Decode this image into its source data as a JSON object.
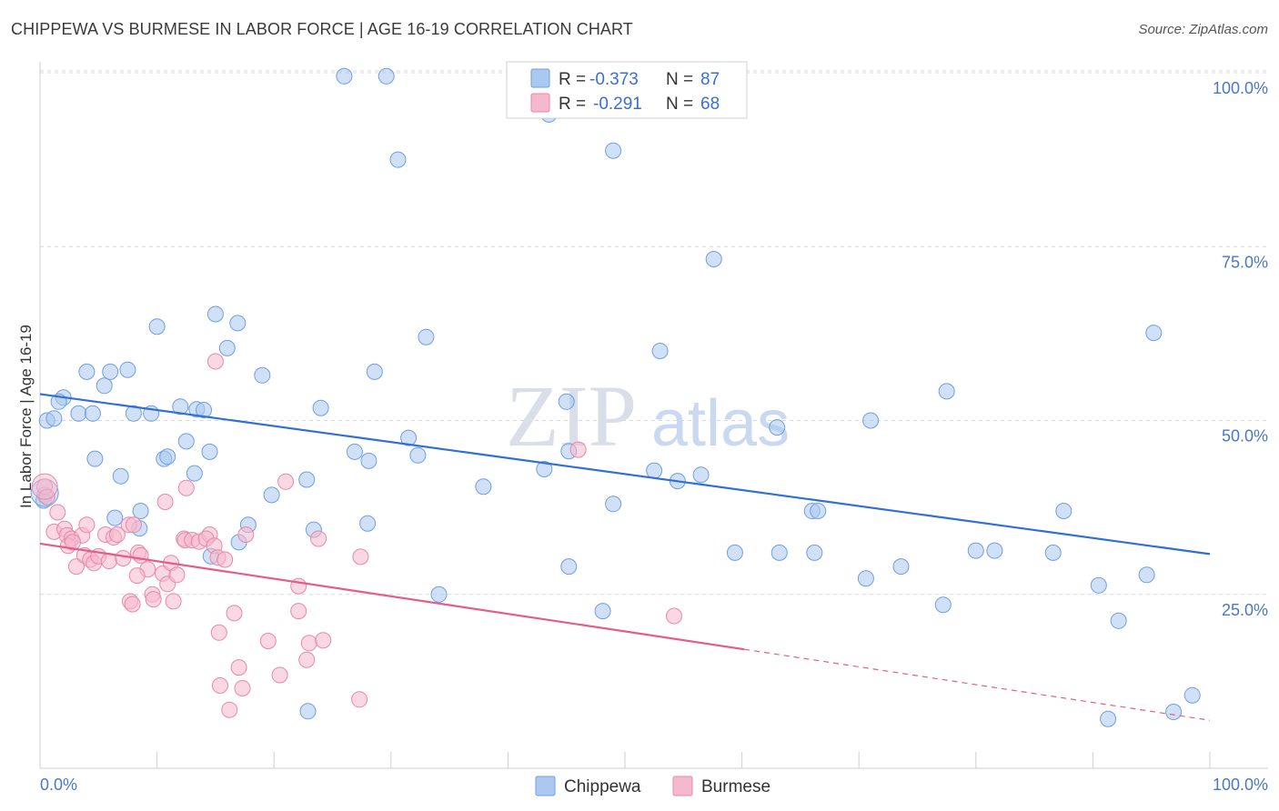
{
  "header": {
    "title": "CHIPPEWA VS BURMESE IN LABOR FORCE | AGE 16-19 CORRELATION CHART",
    "source": "Source: ZipAtlas.com"
  },
  "watermark": {
    "zip": "ZIP",
    "atlas": "atlas"
  },
  "legend": {
    "rows": [
      {
        "r_label": "R =",
        "r_value": "-0.373",
        "n_label": "N =",
        "n_value": "87",
        "color": "#aac8f0"
      },
      {
        "r_label": "R =",
        "r_value": "-0.291",
        "n_label": "N =",
        "n_value": "68",
        "color": "#f5b8cc"
      }
    ]
  },
  "bottom_legend": {
    "items": [
      {
        "label": "Chippewa",
        "color": "#aac8f0"
      },
      {
        "label": "Burmese",
        "color": "#f5b8cc"
      }
    ]
  },
  "chart_data": {
    "type": "scatter",
    "title": "CHIPPEWA VS BURMESE IN LABOR FORCE | AGE 16-19 CORRELATION CHART",
    "xlabel": "",
    "ylabel": "In Labor Force | Age 16-19",
    "xlim": [
      0,
      100
    ],
    "ylim": [
      0,
      103
    ],
    "x_tick_labels": [
      "0.0%",
      "100.0%"
    ],
    "y_ticks": [
      25,
      50,
      75,
      100
    ],
    "y_tick_labels": [
      "25.0%",
      "50.0%",
      "75.0%",
      "100.0%"
    ],
    "grid": true,
    "legend_position": "top-center",
    "series": [
      {
        "name": "Chippewa",
        "color": "#aac8f0",
        "stroke": "#6f9fe0",
        "trend": {
          "x": [
            0,
            100
          ],
          "y": [
            53.8,
            30.8
          ],
          "color": "#2f6fd6"
        },
        "points": [
          [
            26,
            99.5
          ],
          [
            29.6,
            99.5
          ],
          [
            43.5,
            94
          ],
          [
            30.6,
            87.5
          ],
          [
            49,
            88.8
          ],
          [
            57.6,
            73.2
          ],
          [
            95.2,
            62.6
          ],
          [
            10,
            63.5
          ],
          [
            15,
            65.3
          ],
          [
            16.9,
            64
          ],
          [
            16,
            60.4
          ],
          [
            33,
            62
          ],
          [
            53,
            60
          ],
          [
            4,
            57
          ],
          [
            6,
            57
          ],
          [
            7.5,
            57.3
          ],
          [
            19,
            56.5
          ],
          [
            28.6,
            57
          ],
          [
            5.5,
            55
          ],
          [
            2,
            53.3
          ],
          [
            1.6,
            52.7
          ],
          [
            12,
            52
          ],
          [
            13.4,
            51.6
          ],
          [
            14,
            51.5
          ],
          [
            8,
            51
          ],
          [
            9.5,
            51
          ],
          [
            3.3,
            51
          ],
          [
            4.5,
            51
          ],
          [
            0.6,
            50
          ],
          [
            1.2,
            50.3
          ],
          [
            24,
            51.8
          ],
          [
            45,
            52.7
          ],
          [
            77.5,
            54.2
          ],
          [
            71,
            50
          ],
          [
            63,
            49
          ],
          [
            31.5,
            47.5
          ],
          [
            12.5,
            47
          ],
          [
            14.5,
            45.5
          ],
          [
            26.9,
            45.5
          ],
          [
            32.3,
            45
          ],
          [
            45.2,
            45.6
          ],
          [
            10.6,
            44.5
          ],
          [
            10.9,
            44.8
          ],
          [
            4.7,
            44.5
          ],
          [
            28.1,
            44.2
          ],
          [
            43.1,
            43
          ],
          [
            52.5,
            42.8
          ],
          [
            13.2,
            42.4
          ],
          [
            6.9,
            42
          ],
          [
            22.8,
            41.5
          ],
          [
            54.5,
            41.3
          ],
          [
            56.5,
            42.2
          ],
          [
            37.9,
            40.5
          ],
          [
            0.4,
            39.3
          ],
          [
            0.3,
            38.5
          ],
          [
            19.8,
            39.3
          ],
          [
            49,
            38
          ],
          [
            8.6,
            37
          ],
          [
            66,
            37
          ],
          [
            66.5,
            37
          ],
          [
            87.5,
            37
          ],
          [
            6.4,
            36
          ],
          [
            17.8,
            35
          ],
          [
            28,
            35.2
          ],
          [
            8.5,
            34.5
          ],
          [
            23.4,
            34.3
          ],
          [
            17,
            32.5
          ],
          [
            14.6,
            30.5
          ],
          [
            59.4,
            31
          ],
          [
            63.2,
            31
          ],
          [
            66.2,
            31
          ],
          [
            80,
            31.3
          ],
          [
            81.6,
            31.3
          ],
          [
            86.6,
            31
          ],
          [
            45.2,
            29
          ],
          [
            73.6,
            29
          ],
          [
            70.6,
            27.3
          ],
          [
            94.6,
            27.8
          ],
          [
            90.5,
            26.3
          ],
          [
            34.1,
            25
          ],
          [
            48.1,
            22.6
          ],
          [
            77.2,
            23.5
          ],
          [
            92.2,
            21.2
          ],
          [
            98.5,
            10.5
          ],
          [
            96.9,
            8.1
          ],
          [
            91.3,
            7.1
          ],
          [
            22.9,
            8.2
          ]
        ]
      },
      {
        "name": "Burmese",
        "color": "#f5b8cc",
        "stroke": "#e888a8",
        "trend": {
          "x": [
            0,
            60.2
          ],
          "y": [
            32.3,
            17.1
          ],
          "color": "#e35d8c",
          "dashed_extension": {
            "x": [
              60.2,
              100
            ],
            "y": [
              17.1,
              6.9
            ]
          }
        },
        "points": [
          [
            0.4,
            40.5
          ],
          [
            0.6,
            39
          ],
          [
            1.5,
            36.8
          ],
          [
            1.2,
            34
          ],
          [
            2.1,
            34.4
          ],
          [
            2.3,
            33.5
          ],
          [
            2.7,
            33
          ],
          [
            3.6,
            33.5
          ],
          [
            4,
            35
          ],
          [
            2.4,
            32
          ],
          [
            2.8,
            32.5
          ],
          [
            3.1,
            29
          ],
          [
            3.8,
            30.6
          ],
          [
            4.3,
            30
          ],
          [
            4.6,
            29.5
          ],
          [
            5,
            30.5
          ],
          [
            5.6,
            33.6
          ],
          [
            5.9,
            29.8
          ],
          [
            6.3,
            33.2
          ],
          [
            6.6,
            33.6
          ],
          [
            7.1,
            30.2
          ],
          [
            7.6,
            35
          ],
          [
            8.4,
            31
          ],
          [
            8.6,
            30.6
          ],
          [
            9.2,
            28.6
          ],
          [
            8.3,
            27.7
          ],
          [
            9.6,
            25
          ],
          [
            7.7,
            24
          ],
          [
            7.9,
            23.6
          ],
          [
            9.7,
            24.3
          ],
          [
            10.5,
            28
          ],
          [
            10.9,
            26.5
          ],
          [
            11.2,
            29.5
          ],
          [
            11.7,
            27.8
          ],
          [
            11.4,
            24
          ],
          [
            12.3,
            33
          ],
          [
            12.4,
            32.8
          ],
          [
            13,
            32.8
          ],
          [
            13.6,
            32.6
          ],
          [
            14.5,
            33.6
          ],
          [
            14.2,
            33
          ],
          [
            14.9,
            32
          ],
          [
            15.2,
            30.3
          ],
          [
            15.8,
            30
          ],
          [
            17.6,
            33.6
          ],
          [
            10.7,
            38.3
          ],
          [
            12.5,
            40.3
          ],
          [
            15,
            58.5
          ],
          [
            21,
            41.2
          ],
          [
            22.1,
            26.2
          ],
          [
            23.8,
            33
          ],
          [
            27.4,
            30.4
          ],
          [
            15.3,
            19.5
          ],
          [
            16.6,
            22.3
          ],
          [
            19.5,
            18.3
          ],
          [
            22.1,
            22.6
          ],
          [
            23,
            18
          ],
          [
            24.2,
            18.4
          ],
          [
            17,
            14.5
          ],
          [
            20.5,
            13.4
          ],
          [
            15.4,
            11.9
          ],
          [
            17.3,
            11.5
          ],
          [
            16.2,
            8.4
          ],
          [
            27.3,
            9.9
          ],
          [
            46,
            45.8
          ],
          [
            54.2,
            21.9
          ],
          [
            22.8,
            15.6
          ],
          [
            8,
            35
          ]
        ]
      }
    ]
  }
}
